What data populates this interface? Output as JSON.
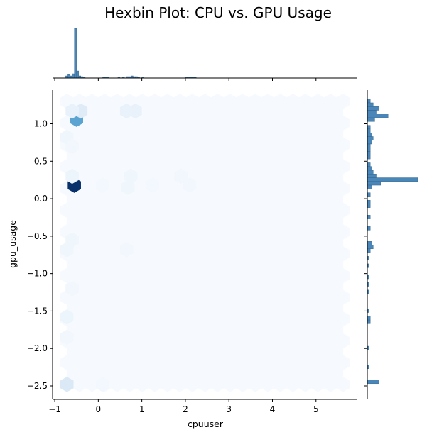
{
  "chart_data": {
    "type": "hexbin",
    "title": "Hexbin Plot: CPU vs. GPU Usage",
    "xlabel": "cpuuser",
    "ylabel": "gpu_usage",
    "xlim": [
      -1.05,
      5.95
    ],
    "ylim": [
      -2.68,
      1.45
    ],
    "x_ticks": [
      -1,
      0,
      1,
      2,
      3,
      4,
      5
    ],
    "y_ticks": [
      -2.5,
      -2.0,
      -1.5,
      -1.0,
      -0.5,
      0.0,
      0.5,
      1.0
    ],
    "x_tick_labels": [
      "−1",
      "0",
      "1",
      "2",
      "3",
      "4",
      "5"
    ],
    "y_tick_labels": [
      "−2.5",
      "−2.0",
      "−1.5",
      "−1.0",
      "−0.5",
      "0.0",
      "0.5",
      "1.0"
    ],
    "colormap": [
      "#f7fbff",
      "#deebf7",
      "#c6dbef",
      "#9ecae1",
      "#6baed6",
      "#4292c6",
      "#2171b5",
      "#08519c",
      "#08306b"
    ],
    "hexbin_extent": {
      "x": [
        -0.72,
        5.62
      ],
      "y": [
        -2.48,
        1.3
      ]
    },
    "hexbin_gridsize": {
      "x": 22,
      "y": 13
    },
    "cells": [
      {
        "x": -0.55,
        "y": 0.18,
        "value": 1.0
      },
      {
        "x": -0.5,
        "y": 1.06,
        "value": 0.55
      },
      {
        "x": -0.4,
        "y": 1.17,
        "value": 0.12
      },
      {
        "x": -0.72,
        "y": -2.48,
        "value": 0.14
      },
      {
        "x": -0.6,
        "y": 1.17,
        "value": 0.07
      },
      {
        "x": 0.65,
        "y": 1.17,
        "value": 0.07
      },
      {
        "x": 0.85,
        "y": 1.17,
        "value": 0.07
      },
      {
        "x": -0.6,
        "y": 0.3,
        "value": 0.05
      },
      {
        "x": -0.72,
        "y": 0.82,
        "value": 0.04
      },
      {
        "x": -0.6,
        "y": 0.7,
        "value": 0.03
      },
      {
        "x": -0.72,
        "y": -1.58,
        "value": 0.05
      },
      {
        "x": -0.6,
        "y": -0.55,
        "value": 0.04
      },
      {
        "x": -0.72,
        "y": -0.68,
        "value": 0.04
      },
      {
        "x": 0.68,
        "y": 0.15,
        "value": 0.04
      },
      {
        "x": 0.75,
        "y": 0.3,
        "value": 0.04
      },
      {
        "x": 0.65,
        "y": -0.68,
        "value": 0.03
      },
      {
        "x": -0.6,
        "y": -1.2,
        "value": 0.03
      },
      {
        "x": -0.72,
        "y": -1.85,
        "value": 0.03
      },
      {
        "x": 2.1,
        "y": 0.18,
        "value": 0.03
      },
      {
        "x": 1.9,
        "y": 0.3,
        "value": 0.03
      },
      {
        "x": 0.1,
        "y": 0.18,
        "value": 0.025
      },
      {
        "x": 0.1,
        "y": -2.48,
        "value": 0.025
      },
      {
        "x": 1.25,
        "y": 0.18,
        "value": 0.02
      }
    ],
    "marginal_x": {
      "bin_width": 0.05,
      "bins": [
        {
          "x": -0.75,
          "count": 3
        },
        {
          "x": -0.7,
          "count": 5
        },
        {
          "x": -0.65,
          "count": 3
        },
        {
          "x": -0.6,
          "count": 6
        },
        {
          "x": -0.55,
          "count": 70
        },
        {
          "x": -0.5,
          "count": 10
        },
        {
          "x": -0.45,
          "count": 3
        },
        {
          "x": -0.4,
          "count": 2
        },
        {
          "x": -0.35,
          "count": 1
        },
        {
          "x": 0.1,
          "count": 1
        },
        {
          "x": 0.15,
          "count": 1
        },
        {
          "x": 0.2,
          "count": 1
        },
        {
          "x": 0.45,
          "count": 1
        },
        {
          "x": 0.55,
          "count": 1
        },
        {
          "x": 0.65,
          "count": 2
        },
        {
          "x": 0.7,
          "count": 2
        },
        {
          "x": 0.75,
          "count": 3
        },
        {
          "x": 0.8,
          "count": 2
        },
        {
          "x": 0.85,
          "count": 2
        },
        {
          "x": 0.9,
          "count": 1
        },
        {
          "x": 1.0,
          "count": 1
        },
        {
          "x": 2.0,
          "count": 1
        },
        {
          "x": 2.05,
          "count": 1
        },
        {
          "x": 2.1,
          "count": 1
        },
        {
          "x": 2.15,
          "count": 1
        },
        {
          "x": 2.2,
          "count": 1
        }
      ]
    },
    "marginal_y": {
      "bin_height": 0.05,
      "bins": [
        {
          "y": 1.28,
          "count": 2
        },
        {
          "y": 1.23,
          "count": 4
        },
        {
          "y": 1.18,
          "count": 8
        },
        {
          "y": 1.13,
          "count": 6
        },
        {
          "y": 1.08,
          "count": 14
        },
        {
          "y": 1.03,
          "count": 5
        },
        {
          "y": 0.93,
          "count": 2
        },
        {
          "y": 0.88,
          "count": 2
        },
        {
          "y": 0.83,
          "count": 3
        },
        {
          "y": 0.78,
          "count": 4
        },
        {
          "y": 0.73,
          "count": 3
        },
        {
          "y": 0.68,
          "count": 2
        },
        {
          "y": 0.63,
          "count": 2
        },
        {
          "y": 0.58,
          "count": 2
        },
        {
          "y": 0.53,
          "count": 2
        },
        {
          "y": 0.43,
          "count": 2
        },
        {
          "y": 0.38,
          "count": 3
        },
        {
          "y": 0.33,
          "count": 4
        },
        {
          "y": 0.28,
          "count": 6
        },
        {
          "y": 0.23,
          "count": 34
        },
        {
          "y": 0.18,
          "count": 9
        },
        {
          "y": 0.13,
          "count": 3
        },
        {
          "y": 0.03,
          "count": 2
        },
        {
          "y": -0.07,
          "count": 2
        },
        {
          "y": -0.12,
          "count": 2
        },
        {
          "y": -0.27,
          "count": 2
        },
        {
          "y": -0.42,
          "count": 2
        },
        {
          "y": -0.62,
          "count": 3
        },
        {
          "y": -0.67,
          "count": 4
        },
        {
          "y": -0.72,
          "count": 2
        },
        {
          "y": -0.82,
          "count": 1
        },
        {
          "y": -0.92,
          "count": 1
        },
        {
          "y": -1.07,
          "count": 1
        },
        {
          "y": -1.17,
          "count": 1
        },
        {
          "y": -1.27,
          "count": 1
        },
        {
          "y": -1.52,
          "count": 1
        },
        {
          "y": -1.62,
          "count": 2
        },
        {
          "y": -1.67,
          "count": 2
        },
        {
          "y": -2.02,
          "count": 1
        },
        {
          "y": -2.27,
          "count": 1
        },
        {
          "y": -2.47,
          "count": 8
        }
      ]
    }
  }
}
